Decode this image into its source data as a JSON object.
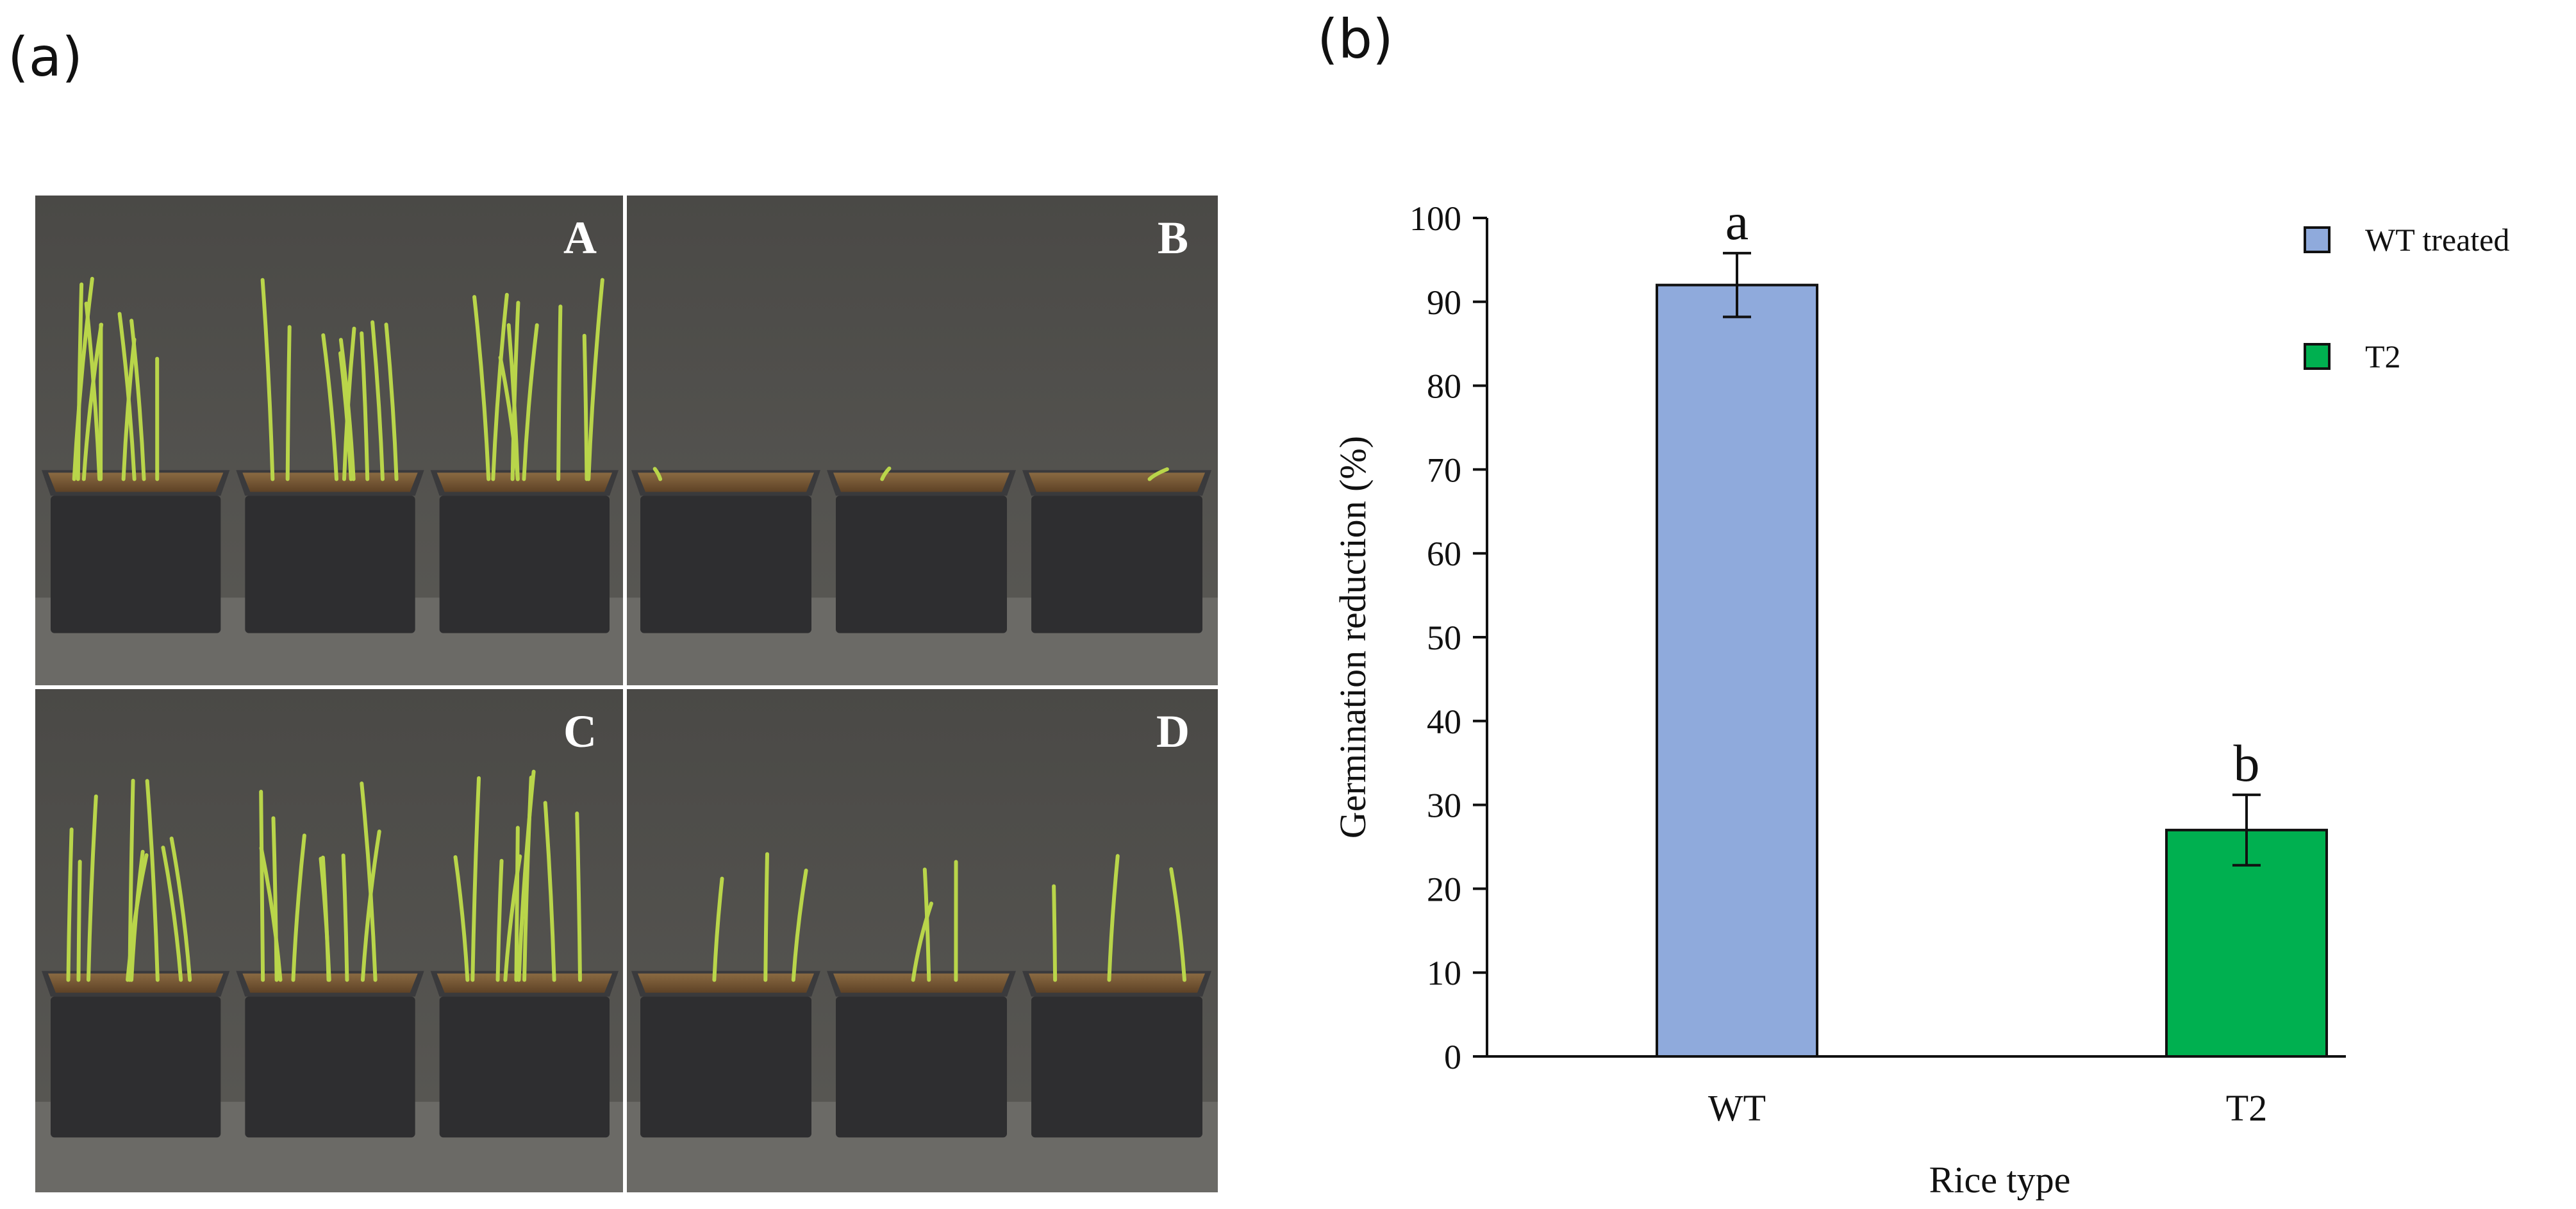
{
  "figure": {
    "panel_a_label": "(a)",
    "panel_b_label": "(b)"
  },
  "photos": {
    "subpanels": [
      {
        "label": "A",
        "growth": "dense"
      },
      {
        "label": "B",
        "growth": "none"
      },
      {
        "label": "C",
        "growth": "dense"
      },
      {
        "label": "D",
        "growth": "sparse"
      }
    ]
  },
  "colors": {
    "wt_bar": "#8faadc",
    "t2_bar": "#00b050",
    "bar_edge": "#111111",
    "photo_bg": "#4e4d4a",
    "soil": "#7a5a38",
    "tray": "#2e2e30",
    "seedling": "#b9d54a"
  },
  "chart_data": {
    "type": "bar",
    "categories": [
      "WT",
      "T2"
    ],
    "values": [
      92,
      27
    ],
    "errors": [
      3.8,
      4.2
    ],
    "significance": [
      "a",
      "b"
    ],
    "series": [
      {
        "name": "WT treated",
        "values": [
          92,
          null
        ],
        "color": "#8faadc"
      },
      {
        "name": "T2",
        "values": [
          null,
          27
        ],
        "color": "#00b050"
      }
    ],
    "title": "",
    "xlabel": "Rice type",
    "ylabel": "Germination reduction (%)",
    "ylim": [
      0,
      100
    ],
    "yticks": [
      0,
      10,
      20,
      30,
      40,
      50,
      60,
      70,
      80,
      90,
      100
    ],
    "grid": false,
    "legend_position": "top-right"
  }
}
